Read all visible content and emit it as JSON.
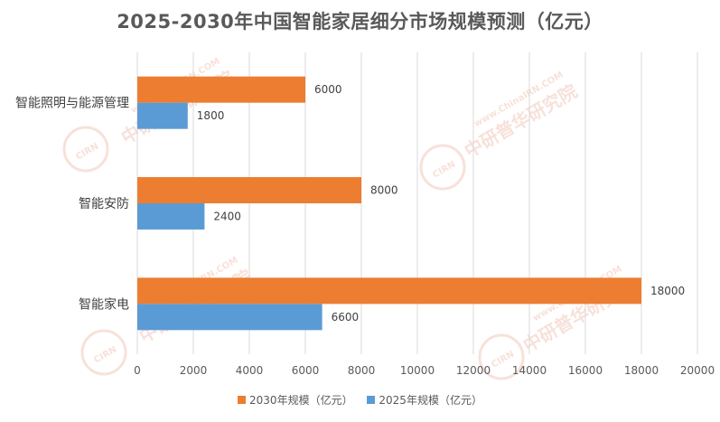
{
  "chart_data": {
    "type": "bar",
    "orientation": "horizontal",
    "title": "2025-2030年中国智能家居细分市场规模预测（亿元）",
    "categories": [
      "智能照明与能源管理",
      "智能安防",
      "智能家电"
    ],
    "series": [
      {
        "name": "2030年规模（亿元）",
        "color": "#ED7D31",
        "values": [
          6000,
          8000,
          18000
        ]
      },
      {
        "name": "2025年规模（亿元）",
        "color": "#5B9BD5",
        "values": [
          1800,
          2400,
          6600
        ]
      }
    ],
    "xlim": [
      0,
      20000
    ],
    "xticks": [
      "0",
      "2000",
      "4000",
      "6000",
      "8000",
      "10000",
      "12000",
      "14000",
      "16000",
      "18000",
      "20000"
    ],
    "grid": true,
    "legend": "bottom"
  },
  "watermark": {
    "logo": "CIRN",
    "text": "中研普华研究院",
    "url": "www.ChinaIRN.COM"
  }
}
